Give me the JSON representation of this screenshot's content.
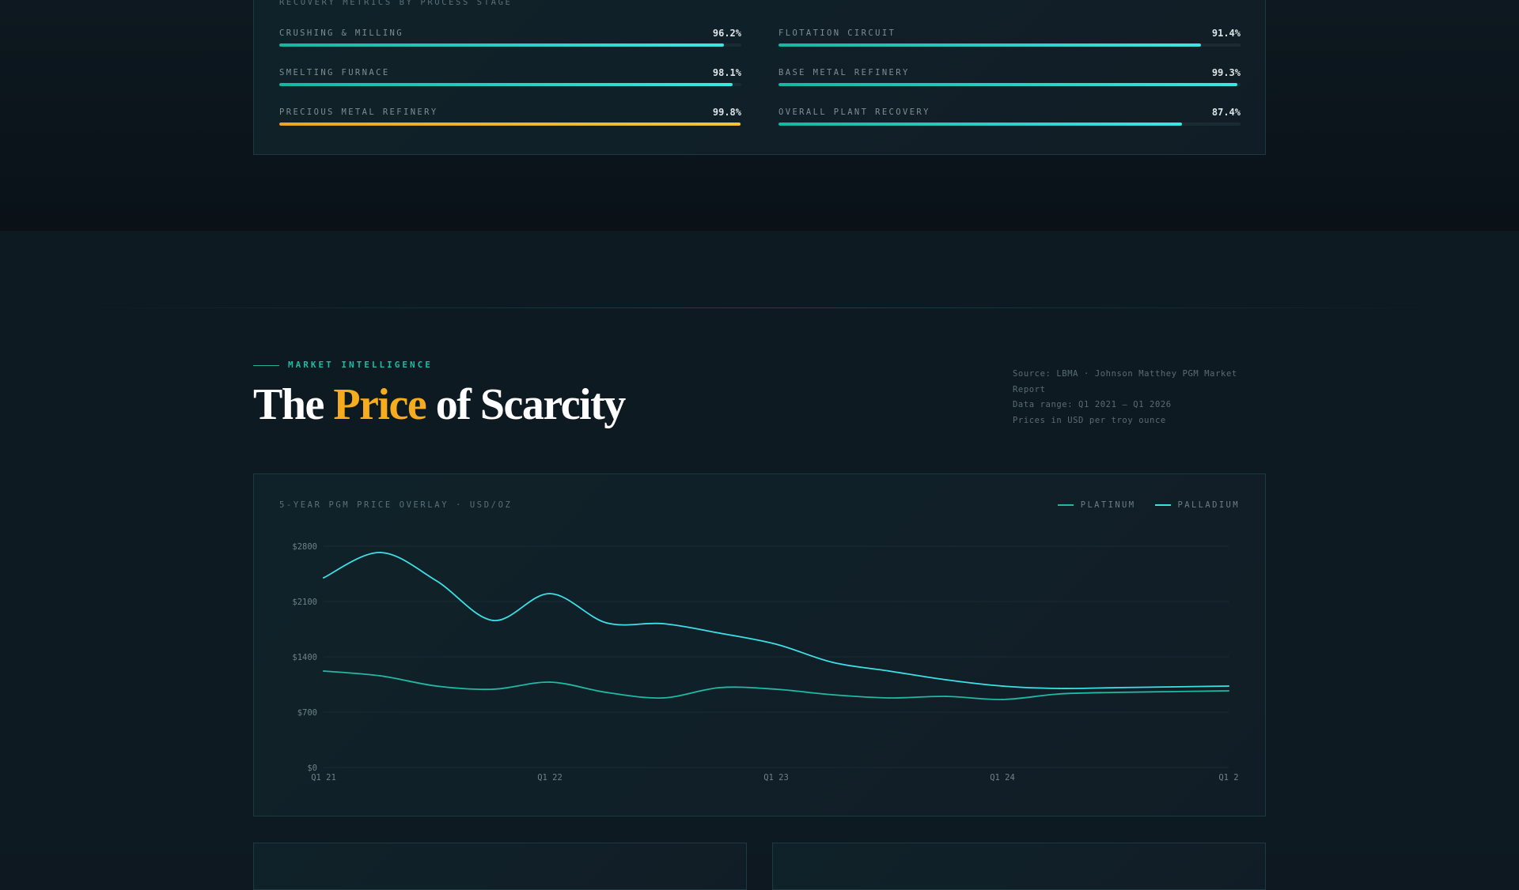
{
  "recovery": {
    "caption": "RECOVERY METRICS BY PROCESS STAGE",
    "metrics": [
      {
        "label": "CRUSHING & MILLING",
        "value": "96.2%",
        "fraction": 0.962,
        "accent": "teal"
      },
      {
        "label": "FLOTATION CIRCUIT",
        "value": "91.4%",
        "fraction": 0.914,
        "accent": "teal"
      },
      {
        "label": "SMELTING FURNACE",
        "value": "98.1%",
        "fraction": 0.981,
        "accent": "teal"
      },
      {
        "label": "BASE METAL REFINERY",
        "value": "99.3%",
        "fraction": 0.993,
        "accent": "teal"
      },
      {
        "label": "PRECIOUS METAL REFINERY",
        "value": "99.8%",
        "fraction": 0.998,
        "accent": "gold"
      },
      {
        "label": "OVERALL PLANT RECOVERY",
        "value": "87.4%",
        "fraction": 0.874,
        "accent": "teal"
      }
    ]
  },
  "section": {
    "eyebrow": "MARKET INTELLIGENCE",
    "title_before": "The ",
    "title_accent": "Price",
    "title_after": " of Scarcity",
    "source_lines": [
      "Source: LBMA · Johnson Matthey PGM Market",
      "Report",
      "Data range: Q1 2021 – Q1 2026",
      "Prices in USD per troy ounce"
    ]
  },
  "colors": {
    "teal": "#20b9a3",
    "cyan": "#3de0e6",
    "gold": "#f5ad1d",
    "background": "#0e1a22"
  },
  "chart": {
    "caption": "5-YEAR PGM PRICE OVERLAY · USD/OZ",
    "legend": [
      {
        "label": "PLATINUM",
        "color": "#20b9a3"
      },
      {
        "label": "PALLADIUM",
        "color": "#3de0e6"
      }
    ]
  },
  "chart_data": {
    "type": "line",
    "title": "5-YEAR PGM PRICE OVERLAY · USD/OZ",
    "xlabel": "",
    "ylabel": "",
    "x_ticks": [
      "Q1 21",
      "Q1 22",
      "Q1 23",
      "Q1 24",
      "Q1 2"
    ],
    "y_ticks": [
      "$0",
      "$700",
      "$1400",
      "$2100",
      "$2800"
    ],
    "ylim": [
      0,
      2800
    ],
    "xlim": [
      2021.0,
      2025.0
    ],
    "grid": true,
    "legend_position": "top-right",
    "series": [
      {
        "name": "PLATINUM",
        "color": "#20b9a3",
        "x": [
          2021.0,
          2021.25,
          2021.5,
          2021.75,
          2022.0,
          2022.25,
          2022.5,
          2022.75,
          2023.0,
          2023.25,
          2023.5,
          2023.75,
          2024.0,
          2024.25,
          2024.5,
          2024.75,
          2025.0
        ],
        "y": [
          1220,
          1160,
          1030,
          990,
          1080,
          950,
          880,
          1010,
          990,
          920,
          880,
          900,
          860,
          930,
          950,
          960,
          970
        ]
      },
      {
        "name": "PALLADIUM",
        "color": "#3de0e6",
        "x": [
          2021.0,
          2021.25,
          2021.5,
          2021.75,
          2022.0,
          2022.25,
          2022.5,
          2022.75,
          2023.0,
          2023.25,
          2023.5,
          2023.75,
          2024.0,
          2024.25,
          2024.5,
          2024.75,
          2025.0
        ],
        "y": [
          2400,
          2720,
          2360,
          1860,
          2200,
          1830,
          1820,
          1700,
          1560,
          1330,
          1220,
          1110,
          1030,
          1000,
          1010,
          1020,
          1030
        ]
      }
    ]
  }
}
